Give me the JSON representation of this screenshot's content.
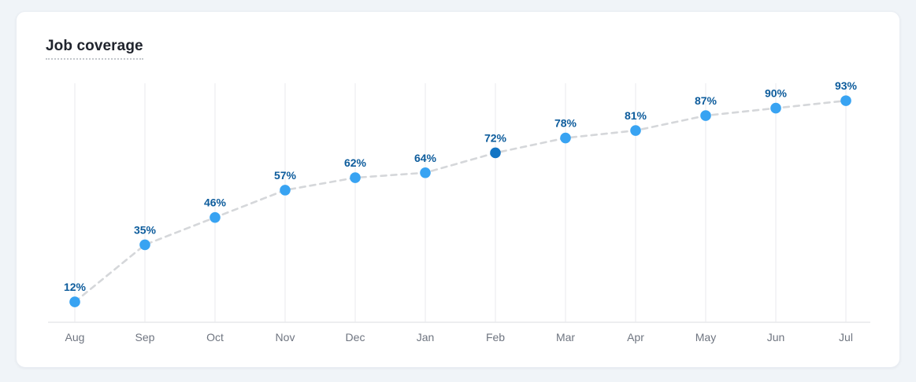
{
  "page": {
    "background": "#f0f4f8"
  },
  "card": {
    "title": "Job coverage"
  },
  "chart_data": {
    "type": "line",
    "title": "Job coverage",
    "categories": [
      "Aug",
      "Sep",
      "Oct",
      "Nov",
      "Dec",
      "Jan",
      "Feb",
      "Mar",
      "Apr",
      "May",
      "Jun",
      "Jul"
    ],
    "series": [
      {
        "name": "Job coverage",
        "values": [
          12,
          35,
          46,
          57,
          62,
          64,
          72,
          78,
          81,
          87,
          90,
          93
        ]
      }
    ],
    "point_labels": [
      "12%",
      "35%",
      "46%",
      "57%",
      "62%",
      "64%",
      "72%",
      "78%",
      "81%",
      "87%",
      "90%",
      "93%"
    ],
    "highlighted_index": 6,
    "ylim": [
      0,
      100
    ],
    "grid": "vertical-only",
    "line_style": "dashed",
    "legend": "none",
    "colors": {
      "point": "#38a3f2",
      "highlighted_point": "#1274c4",
      "value_label": "#0d5c9c",
      "dashed_line": "#d5d7da",
      "gridline": "#f0f1f4",
      "axis_line": "#e7e9ec",
      "month_label": "#6f7580"
    }
  }
}
